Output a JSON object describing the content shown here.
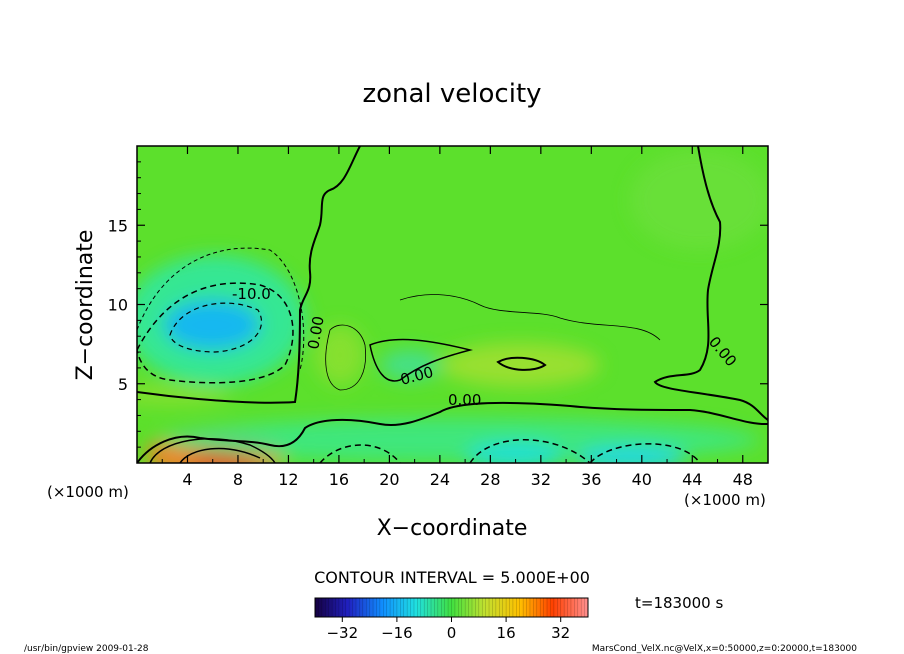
{
  "chart_data": {
    "type": "heatmap",
    "title": "zonal velocity",
    "xlabel": "X−coordinate",
    "ylabel": "Z−coordinate",
    "x_unit": "(×1000 m)",
    "x_unit_right": "(×1000 m)",
    "xlim": [
      0,
      50
    ],
    "ylim": [
      0,
      20
    ],
    "x_ticks": [
      4,
      8,
      12,
      16,
      20,
      24,
      28,
      32,
      36,
      40,
      44,
      48
    ],
    "y_ticks": [
      5,
      10,
      15
    ],
    "contour_interval_label": "CONTOUR INTERVAL = 5.000E+00",
    "time_label": "t=183000 s",
    "colorbar": {
      "range": [
        -40,
        40
      ],
      "ticks": [
        -32,
        -16,
        0,
        16,
        32
      ]
    },
    "contour_labels": [
      "-10.0",
      "0.00",
      "0.00",
      "0.00",
      "0.00"
    ],
    "grid": false,
    "features": [
      {
        "name": "negative core upper-left",
        "x": 6.5,
        "z": 8.8,
        "value": -14
      },
      {
        "name": "positive core lower-left",
        "x": 7,
        "z": 0.8,
        "value": 24
      },
      {
        "name": "negative core bottom",
        "x": 30,
        "z": 1,
        "value": -12
      },
      {
        "name": "negative core bottom right",
        "x": 40,
        "z": 0.7,
        "value": -13
      },
      {
        "name": "negative band",
        "x": 22,
        "z": 1.5,
        "value": -8
      },
      {
        "name": "positive patch",
        "x": 31,
        "z": 6,
        "value": 5
      }
    ]
  },
  "footer": {
    "left": "/usr/bin/gpview  2009-01-28",
    "right": "MarsCond_VelX.nc@VelX,x=0:50000,z=0:20000,t=183000"
  }
}
